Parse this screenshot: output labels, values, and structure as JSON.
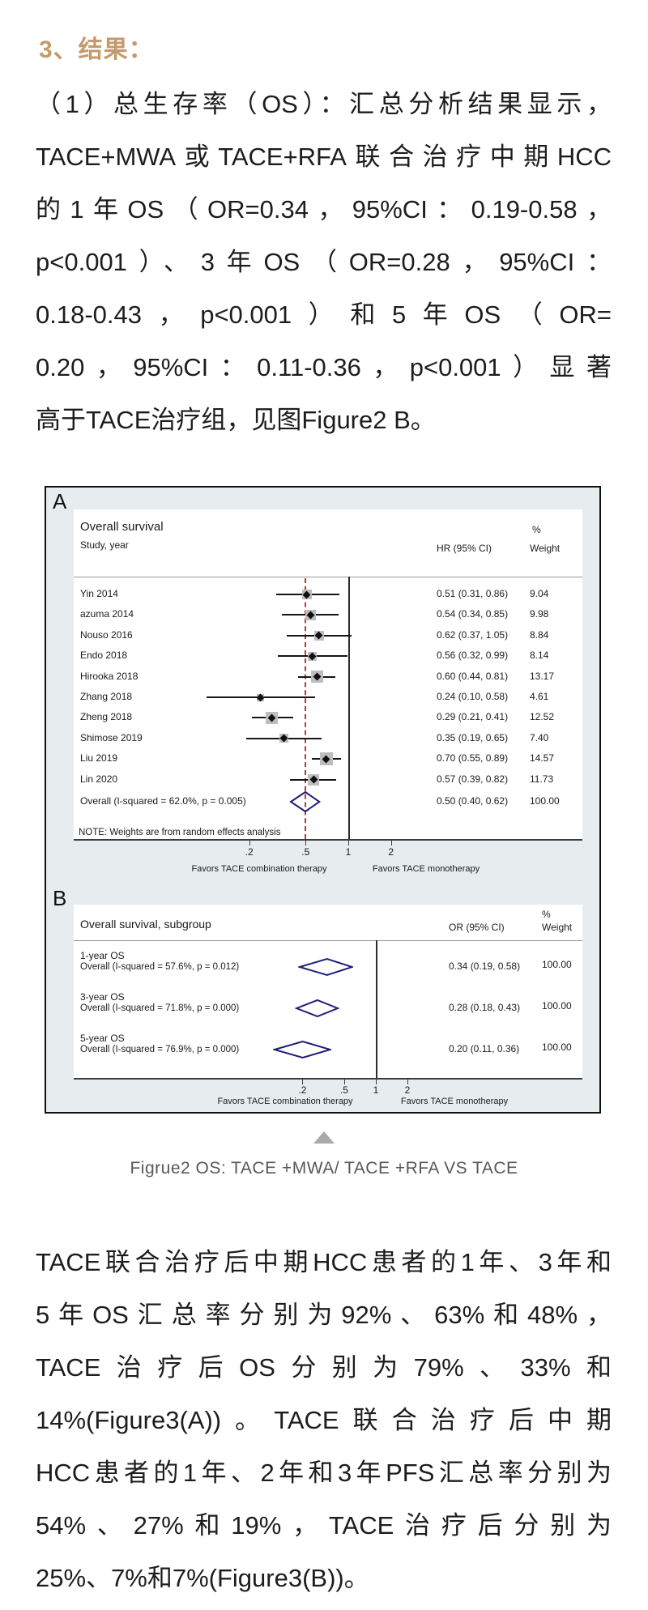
{
  "heading": {
    "text": "3、结果："
  },
  "paragraph1": {
    "lines": [
      "（1）总生存率（OS）：汇总分析结果显示，",
      "TACE+MWA或TACE+RFA联合治疗中期HCC",
      "的1年OS（OR=0.34，95%CI：0.19-0.58，",
      "p<0.001）、3年OS（OR=0.28，95%CI：",
      "0.18-0.43，p<0.001）和5年OS（OR=",
      "0.20，95%CI：0.11-0.36，p<0.001）显著",
      "高于TACE治疗组，见图Figure2 B。"
    ]
  },
  "figure": {
    "label_a": "A",
    "label_b": "B",
    "caption": "Figrue2 OS: TACE +MWA/ TACE +RFA VS TACE"
  },
  "chart_data": [
    {
      "type": "forest",
      "panel": "A",
      "title": "Overall survival",
      "col_study": "Study, year",
      "col_effect": "HR (95% CI)",
      "col_weight_pct": "%",
      "col_weight": "Weight",
      "x_scale": "log",
      "ticks": [
        0.2,
        0.5,
        1,
        2
      ],
      "tick_labels": [
        ".2",
        ".5",
        "1",
        "2"
      ],
      "null_line": 1,
      "ref_dashed_line": 0.5,
      "favors_left": "Favors TACE combination therapy",
      "favors_right": "Favors TACE monotherapy",
      "studies": [
        {
          "name": "Yin 2014",
          "est": 0.51,
          "lo": 0.31,
          "hi": 0.86,
          "label": "0.51 (0.31, 0.86)",
          "weight": 9.04,
          "weight_label": "9.04"
        },
        {
          "name": "azuma 2014",
          "est": 0.54,
          "lo": 0.34,
          "hi": 0.85,
          "label": "0.54 (0.34, 0.85)",
          "weight": 9.98,
          "weight_label": "9.98"
        },
        {
          "name": "Nouso 2016",
          "est": 0.62,
          "lo": 0.37,
          "hi": 1.05,
          "label": "0.62 (0.37, 1.05)",
          "weight": 8.84,
          "weight_label": "8.84"
        },
        {
          "name": "Endo 2018",
          "est": 0.56,
          "lo": 0.32,
          "hi": 0.99,
          "label": "0.56 (0.32, 0.99)",
          "weight": 8.14,
          "weight_label": "8.14"
        },
        {
          "name": "Hirooka 2018",
          "est": 0.6,
          "lo": 0.44,
          "hi": 0.81,
          "label": "0.60 (0.44, 0.81)",
          "weight": 13.17,
          "weight_label": "13.17"
        },
        {
          "name": "Zhang 2018",
          "est": 0.24,
          "lo": 0.1,
          "hi": 0.58,
          "label": "0.24 (0.10, 0.58)",
          "weight": 4.61,
          "weight_label": "4.61"
        },
        {
          "name": "Zheng 2018",
          "est": 0.29,
          "lo": 0.21,
          "hi": 0.41,
          "label": "0.29 (0.21, 0.41)",
          "weight": 12.52,
          "weight_label": "12.52"
        },
        {
          "name": "Shimose 2019",
          "est": 0.35,
          "lo": 0.19,
          "hi": 0.65,
          "label": "0.35 (0.19, 0.65)",
          "weight": 7.4,
          "weight_label": "7.40"
        },
        {
          "name": "Liu 2019",
          "est": 0.7,
          "lo": 0.55,
          "hi": 0.89,
          "label": "0.70 (0.55, 0.89)",
          "weight": 14.57,
          "weight_label": "14.57"
        },
        {
          "name": "Lin 2020",
          "est": 0.57,
          "lo": 0.39,
          "hi": 0.82,
          "label": "0.57 (0.39, 0.82)",
          "weight": 11.73,
          "weight_label": "11.73"
        }
      ],
      "overall": {
        "name": "Overall  (I-squared = 62.0%, p = 0.005)",
        "est": 0.5,
        "lo": 0.4,
        "hi": 0.62,
        "label": "0.50 (0.40, 0.62)",
        "weight_label": "100.00"
      },
      "note": "NOTE: Weights are from random effects analysis"
    },
    {
      "type": "forest",
      "panel": "B",
      "title": "Overall survival, subgroup",
      "col_effect": "OR (95% CI)",
      "col_weight_pct": "%",
      "col_weight": "Weight",
      "x_scale": "log",
      "ticks": [
        0.2,
        0.5,
        1,
        2
      ],
      "tick_labels": [
        ".2",
        ".5",
        "1",
        "2"
      ],
      "null_line": 1,
      "favors_left": "Favors TACE combination therapy",
      "favors_right": "Favors TACE monotherapy",
      "groups": [
        {
          "name": "1-year OS",
          "overall": "Overall  (I-squared = 57.6%, p = 0.012)",
          "est": 0.34,
          "lo": 0.19,
          "hi": 0.58,
          "label": "0.34 (0.19, 0.58)",
          "weight_label": "100.00"
        },
        {
          "name": "3-year OS",
          "overall": "Overall  (I-squared = 71.8%, p = 0.000)",
          "est": 0.28,
          "lo": 0.18,
          "hi": 0.43,
          "label": "0.28 (0.18, 0.43)",
          "weight_label": "100.00"
        },
        {
          "name": "5-year OS",
          "overall": "Overall  (I-squared = 76.9%, p = 0.000)",
          "est": 0.2,
          "lo": 0.11,
          "hi": 0.36,
          "label": "0.20 (0.11, 0.36)",
          "weight_label": "100.00"
        }
      ]
    }
  ],
  "paragraph2": {
    "lines": [
      "TACE联合治疗后中期HCC患者的1年、3年和",
      "5年OS汇总率分别为92%、63%和48%，",
      "TACE治疗后OS分别为79%、33%和",
      "14%(Figure3(A))。TACE联合治疗后中期",
      "HCC患者的1年、2年和3年PFS汇总率分别为",
      "54%、27%和19%，TACE治疗后分别为",
      "25%、7%和7%(Figure3(B))。"
    ]
  },
  "colors": {
    "heading": "#c49a6c",
    "body_text": "#1d1d1d",
    "caption": "#585858",
    "triangle": "#a9a9a9",
    "figure_bg": "#e7edee",
    "figure_border": "#101010",
    "separator": "#9a9a9a",
    "axis": "#3c3c3c",
    "null_line": "#2b2b2b",
    "ref_dashed": "#b23a3a",
    "diamond": "#1e1e78",
    "marker_square": "#bdbdbd",
    "marker_dot": "#101010"
  }
}
